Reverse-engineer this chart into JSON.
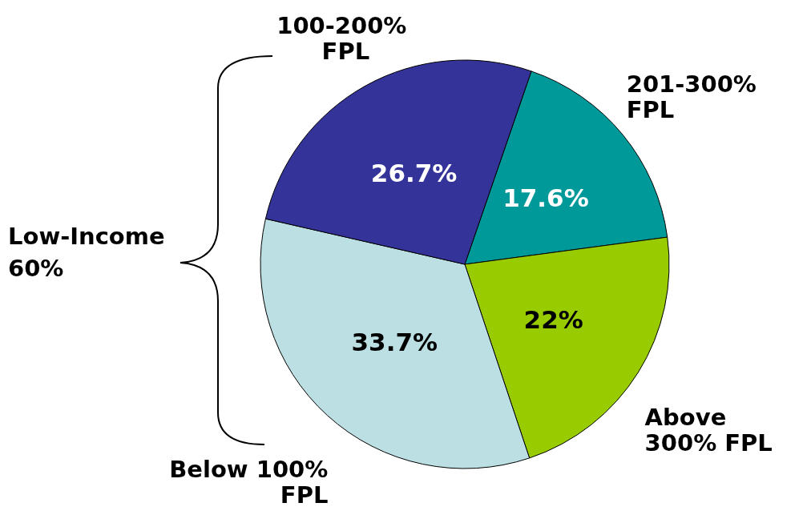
{
  "chart_data": {
    "type": "pie",
    "categories": [
      "201-300% FPL",
      "Above 300% FPL",
      "Below 100% FPL",
      "100-200% FPL"
    ],
    "values": [
      17.6,
      22,
      33.7,
      26.7
    ],
    "value_labels": [
      "17.6%",
      "22%",
      "33.7%",
      "26.7%"
    ],
    "colors": [
      "#009999",
      "#99cc00",
      "#bbdfe3",
      "#333399"
    ],
    "annotations": [
      "Low-Income 60%"
    ],
    "legend": false
  }
}
